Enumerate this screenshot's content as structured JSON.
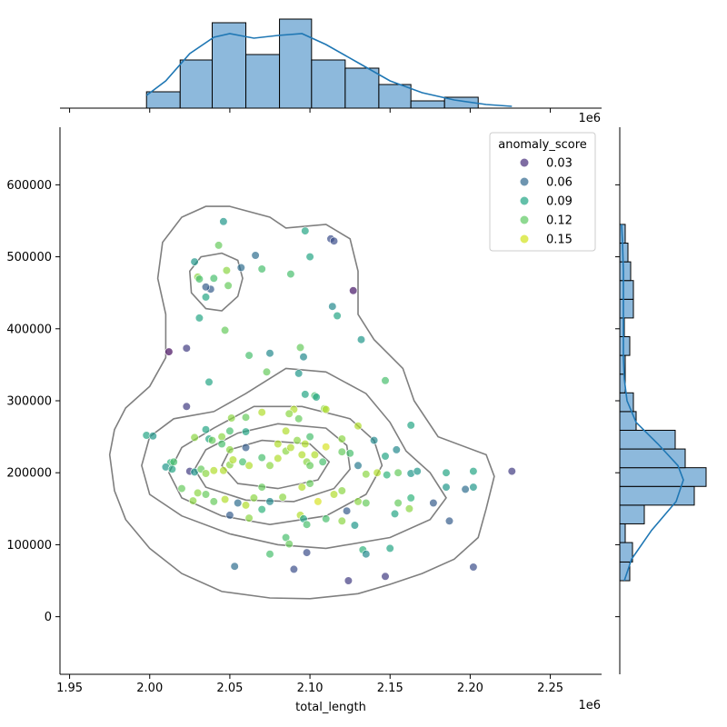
{
  "chart_data": {
    "type": "scatter",
    "subtype": "jointplot",
    "xlabel": "total_length",
    "ylabel": "",
    "x_scale_label": "1e6",
    "xlim": [
      1.944,
      2.282
    ],
    "ylim": [
      -80000,
      680000
    ],
    "x_ticks": [
      1.95,
      2.0,
      2.05,
      2.1,
      2.15,
      2.2,
      2.25
    ],
    "x_tick_labels": [
      "1.95",
      "2.00",
      "2.05",
      "2.10",
      "2.15",
      "2.20",
      "2.25"
    ],
    "y_ticks": [
      0,
      100000,
      200000,
      300000,
      400000,
      500000,
      600000
    ],
    "y_tick_labels": [
      "0",
      "100000",
      "200000",
      "300000",
      "400000",
      "500000",
      "600000"
    ],
    "grid": false,
    "legend": {
      "title": "anomaly_score",
      "placement": "top-right",
      "entries": [
        {
          "label": "0.03",
          "value": 0.03,
          "color": "#472d7b"
        },
        {
          "label": "0.06",
          "value": 0.06,
          "color": "#31688e"
        },
        {
          "label": "0.09",
          "value": 0.09,
          "color": "#21a585"
        },
        {
          "label": "0.12",
          "value": 0.12,
          "color": "#5ec962"
        },
        {
          "label": "0.15",
          "value": 0.15,
          "color": "#d2e21b"
        }
      ]
    },
    "colormap": "viridis",
    "hue_range": [
      0.0,
      0.17
    ],
    "point_alpha": 0.7,
    "points": [
      [
        2.012,
        368000,
        0.005
      ],
      [
        2.023,
        373000,
        0.03
      ],
      [
        2.038,
        455000,
        0.05
      ],
      [
        2.035,
        458000,
        0.05
      ],
      [
        2.057,
        485000,
        0.06
      ],
      [
        2.066,
        502000,
        0.06
      ],
      [
        2.113,
        525000,
        0.04
      ],
      [
        2.115,
        522000,
        0.04
      ],
      [
        2.127,
        453000,
        0.01
      ],
      [
        2.046,
        549000,
        0.09
      ],
      [
        2.097,
        536000,
        0.1
      ],
      [
        2.1,
        500000,
        0.1
      ],
      [
        2.07,
        483000,
        0.12
      ],
      [
        2.088,
        476000,
        0.12
      ],
      [
        2.043,
        516000,
        0.13
      ],
      [
        2.028,
        493000,
        0.09
      ],
      [
        2.03,
        472000,
        0.14
      ],
      [
        2.031,
        469000,
        0.12
      ],
      [
        2.04,
        470000,
        0.12
      ],
      [
        2.048,
        481000,
        0.14
      ],
      [
        2.049,
        460000,
        0.13
      ],
      [
        2.035,
        444000,
        0.1
      ],
      [
        2.031,
        415000,
        0.1
      ],
      [
        2.047,
        398000,
        0.13
      ],
      [
        2.114,
        431000,
        0.08
      ],
      [
        2.117,
        418000,
        0.1
      ],
      [
        2.132,
        385000,
        0.09
      ],
      [
        2.094,
        374000,
        0.13
      ],
      [
        2.096,
        361000,
        0.08
      ],
      [
        2.075,
        366000,
        0.08
      ],
      [
        2.062,
        363000,
        0.12
      ],
      [
        2.037,
        326000,
        0.1
      ],
      [
        2.023,
        292000,
        0.03
      ],
      [
        2.073,
        340000,
        0.13
      ],
      [
        2.093,
        338000,
        0.09
      ],
      [
        2.147,
        328000,
        0.12
      ],
      [
        2.097,
        309000,
        0.1
      ],
      [
        2.103,
        307000,
        0.12
      ],
      [
        2.104,
        305000,
        0.1
      ],
      [
        2.109,
        289000,
        0.14
      ],
      [
        2.11,
        288000,
        0.15
      ],
      [
        2.09,
        288000,
        0.15
      ],
      [
        2.087,
        282000,
        0.14
      ],
      [
        2.07,
        284000,
        0.15
      ],
      [
        2.051,
        276000,
        0.14
      ],
      [
        2.06,
        277000,
        0.13
      ],
      [
        2.093,
        275000,
        0.13
      ],
      [
        1.998,
        252000,
        0.1
      ],
      [
        2.002,
        251000,
        0.09
      ],
      [
        2.028,
        249000,
        0.14
      ],
      [
        2.037,
        247000,
        0.1
      ],
      [
        2.045,
        250000,
        0.14
      ],
      [
        2.05,
        258000,
        0.12
      ],
      [
        2.035,
        260000,
        0.1
      ],
      [
        2.06,
        257000,
        0.1
      ],
      [
        2.085,
        258000,
        0.15
      ],
      [
        2.1,
        250000,
        0.12
      ],
      [
        2.12,
        247000,
        0.14
      ],
      [
        2.13,
        265000,
        0.15
      ],
      [
        2.163,
        266000,
        0.1
      ],
      [
        2.14,
        245000,
        0.08
      ],
      [
        2.154,
        232000,
        0.08
      ],
      [
        2.12,
        229000,
        0.13
      ],
      [
        2.147,
        223000,
        0.1
      ],
      [
        2.11,
        236000,
        0.16
      ],
      [
        2.097,
        240000,
        0.15
      ],
      [
        2.08,
        240000,
        0.15
      ],
      [
        2.06,
        235000,
        0.05
      ],
      [
        2.05,
        232000,
        0.14
      ],
      [
        2.045,
        240000,
        0.12
      ],
      [
        2.039,
        245000,
        0.13
      ],
      [
        2.013,
        214000,
        0.11
      ],
      [
        2.015,
        215000,
        0.12
      ],
      [
        2.01,
        208000,
        0.09
      ],
      [
        2.014,
        205000,
        0.1
      ],
      [
        2.025,
        202000,
        0.03
      ],
      [
        2.028,
        201000,
        0.09
      ],
      [
        2.032,
        205000,
        0.13
      ],
      [
        2.035,
        199000,
        0.14
      ],
      [
        2.04,
        203000,
        0.15
      ],
      [
        2.046,
        203000,
        0.15
      ],
      [
        2.05,
        211000,
        0.14
      ],
      [
        2.052,
        218000,
        0.15
      ],
      [
        2.058,
        215000,
        0.12
      ],
      [
        2.062,
        210000,
        0.15
      ],
      [
        2.07,
        221000,
        0.12
      ],
      [
        2.075,
        210000,
        0.14
      ],
      [
        2.08,
        220000,
        0.15
      ],
      [
        2.085,
        230000,
        0.14
      ],
      [
        2.088,
        235000,
        0.15
      ],
      [
        2.092,
        245000,
        0.14
      ],
      [
        2.095,
        225000,
        0.15
      ],
      [
        2.098,
        215000,
        0.14
      ],
      [
        2.1,
        210000,
        0.13
      ],
      [
        2.103,
        225000,
        0.15
      ],
      [
        2.108,
        215000,
        0.12
      ],
      [
        2.125,
        227000,
        0.12
      ],
      [
        2.13,
        210000,
        0.07
      ],
      [
        2.135,
        198000,
        0.14
      ],
      [
        2.142,
        200000,
        0.15
      ],
      [
        2.148,
        197000,
        0.11
      ],
      [
        2.155,
        200000,
        0.13
      ],
      [
        2.163,
        199000,
        0.09
      ],
      [
        2.167,
        202000,
        0.09
      ],
      [
        2.185,
        200000,
        0.1
      ],
      [
        2.202,
        202000,
        0.1
      ],
      [
        2.226,
        202000,
        0.03
      ],
      [
        2.02,
        178000,
        0.13
      ],
      [
        2.027,
        161000,
        0.14
      ],
      [
        2.03,
        172000,
        0.14
      ],
      [
        2.035,
        170000,
        0.13
      ],
      [
        2.04,
        160000,
        0.13
      ],
      [
        2.047,
        163000,
        0.15
      ],
      [
        2.055,
        158000,
        0.06
      ],
      [
        2.06,
        155000,
        0.15
      ],
      [
        2.065,
        165000,
        0.14
      ],
      [
        2.07,
        180000,
        0.13
      ],
      [
        2.075,
        160000,
        0.08
      ],
      [
        2.083,
        166000,
        0.14
      ],
      [
        2.095,
        180000,
        0.15
      ],
      [
        2.1,
        185000,
        0.13
      ],
      [
        2.105,
        160000,
        0.16
      ],
      [
        2.115,
        170000,
        0.15
      ],
      [
        2.12,
        175000,
        0.14
      ],
      [
        2.13,
        160000,
        0.14
      ],
      [
        2.135,
        158000,
        0.13
      ],
      [
        2.155,
        158000,
        0.13
      ],
      [
        2.163,
        165000,
        0.11
      ],
      [
        2.177,
        158000,
        0.05
      ],
      [
        2.185,
        180000,
        0.09
      ],
      [
        2.197,
        177000,
        0.06
      ],
      [
        2.202,
        180000,
        0.09
      ],
      [
        2.05,
        141000,
        0.05
      ],
      [
        2.062,
        137000,
        0.14
      ],
      [
        2.07,
        149000,
        0.11
      ],
      [
        2.094,
        141000,
        0.15
      ],
      [
        2.096,
        136000,
        0.1
      ],
      [
        2.098,
        128000,
        0.12
      ],
      [
        2.11,
        136000,
        0.12
      ],
      [
        2.12,
        133000,
        0.14
      ],
      [
        2.123,
        147000,
        0.05
      ],
      [
        2.128,
        127000,
        0.09
      ],
      [
        2.153,
        143000,
        0.1
      ],
      [
        2.162,
        150000,
        0.14
      ],
      [
        2.187,
        133000,
        0.05
      ],
      [
        2.085,
        110000,
        0.12
      ],
      [
        2.087,
        101000,
        0.13
      ],
      [
        2.075,
        87000,
        0.12
      ],
      [
        2.098,
        89000,
        0.04
      ],
      [
        2.133,
        93000,
        0.11
      ],
      [
        2.135,
        87000,
        0.08
      ],
      [
        2.15,
        95000,
        0.1
      ],
      [
        2.053,
        70000,
        0.06
      ],
      [
        2.09,
        66000,
        0.04
      ],
      [
        2.124,
        50000,
        0.03
      ],
      [
        2.147,
        56000,
        0.03
      ],
      [
        2.202,
        69000,
        0.04
      ]
    ],
    "kde_contours": [
      [
        [
          2.05,
          570000
        ],
        [
          2.075,
          555000
        ],
        [
          2.085,
          540000
        ],
        [
          2.11,
          545000
        ],
        [
          2.125,
          525000
        ],
        [
          2.13,
          480000
        ],
        [
          2.13,
          420000
        ],
        [
          2.14,
          385000
        ],
        [
          2.158,
          345000
        ],
        [
          2.165,
          300000
        ],
        [
          2.18,
          250000
        ],
        [
          2.21,
          225000
        ],
        [
          2.215,
          195000
        ],
        [
          2.21,
          150000
        ],
        [
          2.205,
          110000
        ],
        [
          2.19,
          80000
        ],
        [
          2.17,
          60000
        ],
        [
          2.15,
          45000
        ],
        [
          2.13,
          32000
        ],
        [
          2.1,
          25000
        ],
        [
          2.075,
          26000
        ],
        [
          2.045,
          35000
        ],
        [
          2.02,
          60000
        ],
        [
          2.0,
          95000
        ],
        [
          1.985,
          135000
        ],
        [
          1.978,
          175000
        ],
        [
          1.975,
          225000
        ],
        [
          1.978,
          260000
        ],
        [
          1.985,
          290000
        ],
        [
          2.0,
          320000
        ],
        [
          2.01,
          360000
        ],
        [
          2.01,
          420000
        ],
        [
          2.005,
          470000
        ],
        [
          2.008,
          520000
        ],
        [
          2.02,
          555000
        ],
        [
          2.035,
          570000
        ],
        [
          2.05,
          570000
        ]
      ],
      [
        [
          2.045,
          505000
        ],
        [
          2.055,
          495000
        ],
        [
          2.058,
          470000
        ],
        [
          2.055,
          445000
        ],
        [
          2.045,
          425000
        ],
        [
          2.035,
          428000
        ],
        [
          2.026,
          450000
        ],
        [
          2.025,
          480000
        ],
        [
          2.032,
          500000
        ],
        [
          2.045,
          505000
        ]
      ],
      [
        [
          2.085,
          345000
        ],
        [
          2.11,
          340000
        ],
        [
          2.135,
          310000
        ],
        [
          2.15,
          270000
        ],
        [
          2.16,
          230000
        ],
        [
          2.175,
          200000
        ],
        [
          2.185,
          165000
        ],
        [
          2.175,
          135000
        ],
        [
          2.15,
          110000
        ],
        [
          2.11,
          95000
        ],
        [
          2.08,
          100000
        ],
        [
          2.05,
          115000
        ],
        [
          2.02,
          140000
        ],
        [
          2.0,
          170000
        ],
        [
          1.995,
          210000
        ],
        [
          2.0,
          250000
        ],
        [
          2.015,
          275000
        ],
        [
          2.04,
          285000
        ],
        [
          2.06,
          310000
        ],
        [
          2.085,
          345000
        ]
      ],
      [
        [
          2.065,
          292000
        ],
        [
          2.095,
          292000
        ],
        [
          2.125,
          275000
        ],
        [
          2.14,
          245000
        ],
        [
          2.145,
          210000
        ],
        [
          2.135,
          170000
        ],
        [
          2.11,
          140000
        ],
        [
          2.075,
          128000
        ],
        [
          2.045,
          140000
        ],
        [
          2.02,
          165000
        ],
        [
          2.012,
          200000
        ],
        [
          2.02,
          235000
        ],
        [
          2.04,
          262000
        ],
        [
          2.065,
          292000
        ]
      ],
      [
        [
          2.08,
          268000
        ],
        [
          2.11,
          262000
        ],
        [
          2.123,
          238000
        ],
        [
          2.125,
          205000
        ],
        [
          2.115,
          178000
        ],
        [
          2.09,
          160000
        ],
        [
          2.06,
          162000
        ],
        [
          2.035,
          180000
        ],
        [
          2.028,
          205000
        ],
        [
          2.035,
          232000
        ],
        [
          2.055,
          255000
        ],
        [
          2.08,
          268000
        ]
      ],
      [
        [
          2.07,
          245000
        ],
        [
          2.1,
          240000
        ],
        [
          2.112,
          215000
        ],
        [
          2.105,
          190000
        ],
        [
          2.08,
          178000
        ],
        [
          2.055,
          185000
        ],
        [
          2.045,
          210000
        ],
        [
          2.05,
          232000
        ],
        [
          2.07,
          245000
        ]
      ]
    ],
    "x_histogram": {
      "bin_edges": [
        1.998,
        2.019,
        2.039,
        2.06,
        2.081,
        2.101,
        2.122,
        2.143,
        2.163,
        2.184,
        2.205,
        2.226
      ],
      "heights": [
        0.18,
        0.53,
        0.94,
        0.59,
        0.98,
        0.53,
        0.44,
        0.26,
        0.08,
        0.12,
        0.0
      ],
      "kde": [
        [
          1.998,
          0.14
        ],
        [
          2.01,
          0.3
        ],
        [
          2.025,
          0.6
        ],
        [
          2.04,
          0.78
        ],
        [
          2.05,
          0.82
        ],
        [
          2.065,
          0.77
        ],
        [
          2.08,
          0.8
        ],
        [
          2.095,
          0.82
        ],
        [
          2.11,
          0.7
        ],
        [
          2.13,
          0.5
        ],
        [
          2.15,
          0.3
        ],
        [
          2.17,
          0.17
        ],
        [
          2.19,
          0.09
        ],
        [
          2.21,
          0.04
        ],
        [
          2.226,
          0.02
        ]
      ]
    },
    "y_histogram": {
      "bin_edges": [
        50000,
        76000,
        103000,
        129000,
        155000,
        181000,
        207000,
        233000,
        259000,
        285000,
        311000,
        337000,
        363000,
        389000,
        415000,
        441000,
        467000,
        493000,
        519000,
        545000
      ],
      "heights": [
        0.11,
        0.14,
        0.06,
        0.27,
        0.82,
        0.95,
        0.72,
        0.61,
        0.18,
        0.15,
        0.06,
        0.06,
        0.11,
        0.05,
        0.15,
        0.15,
        0.12,
        0.09,
        0.06
      ],
      "kde": [
        [
          50000,
          0.05
        ],
        [
          80000,
          0.13
        ],
        [
          120000,
          0.35
        ],
        [
          160000,
          0.62
        ],
        [
          190000,
          0.7
        ],
        [
          210000,
          0.64
        ],
        [
          240000,
          0.42
        ],
        [
          270000,
          0.18
        ],
        [
          300000,
          0.08
        ],
        [
          330000,
          0.05
        ],
        [
          360000,
          0.04
        ],
        [
          400000,
          0.04
        ],
        [
          440000,
          0.04
        ],
        [
          480000,
          0.04
        ],
        [
          520000,
          0.03
        ],
        [
          545000,
          0.02
        ]
      ]
    }
  }
}
